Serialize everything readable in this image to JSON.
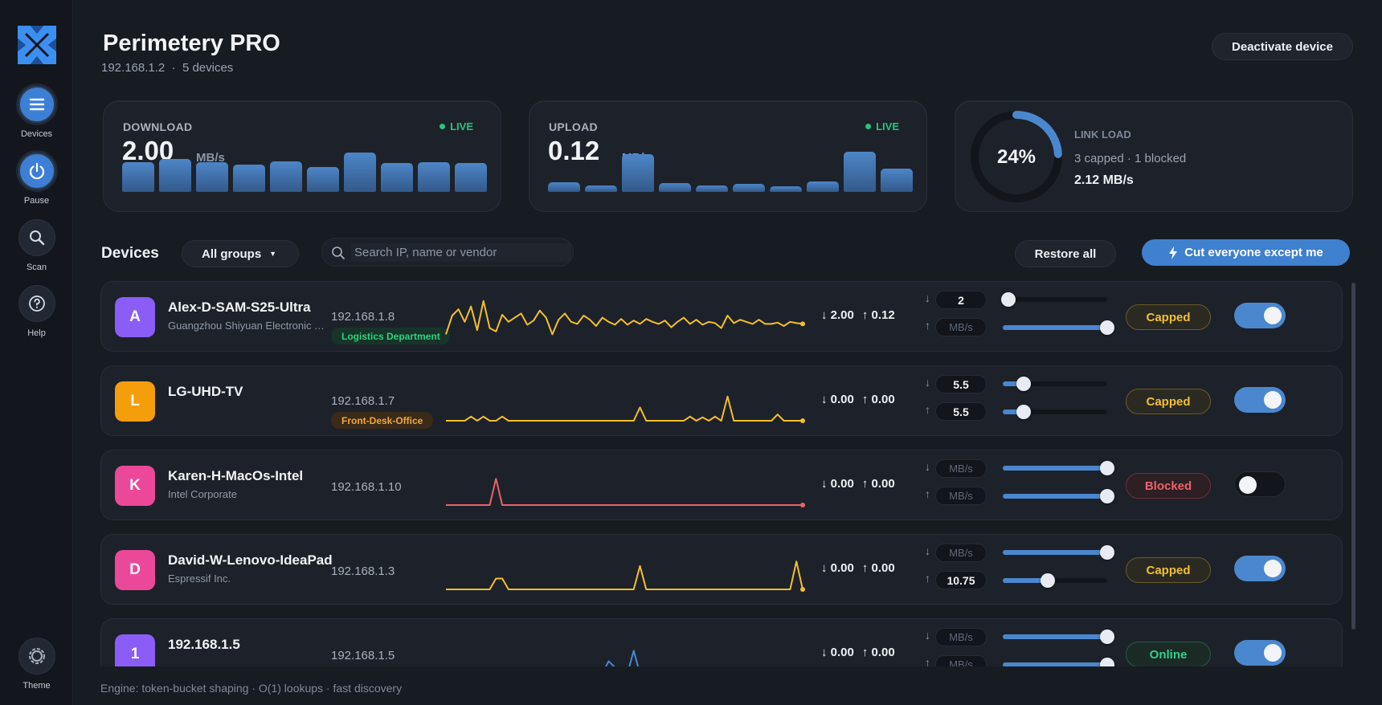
{
  "app": {
    "title": "Perimetery PRO",
    "host_ip": "192.168.1.2",
    "device_count": "5 devices",
    "deactivate_label": "Deactivate device"
  },
  "sidebar": {
    "items": [
      {
        "label": "Devices",
        "icon": "menu-icon",
        "active": true
      },
      {
        "label": "Pause",
        "icon": "power-icon",
        "active": true
      },
      {
        "label": "Scan",
        "icon": "search-icon",
        "active": false
      },
      {
        "label": "Help",
        "icon": "help-icon",
        "active": false
      }
    ],
    "theme_label": "Theme"
  },
  "stats": {
    "download": {
      "label": "DOWNLOAD",
      "value": "2.00",
      "unit": "MB/s",
      "live": "LIVE",
      "history": [
        0.62,
        0.68,
        0.62,
        0.56,
        0.64,
        0.52,
        0.82,
        0.6,
        0.62,
        0.6
      ]
    },
    "upload": {
      "label": "UPLOAD",
      "value": "0.12",
      "unit": "MB/s",
      "live": "LIVE",
      "history": [
        0.2,
        0.14,
        0.78,
        0.18,
        0.14,
        0.16,
        0.12,
        0.22,
        0.84,
        0.48
      ]
    },
    "link_load": {
      "label": "LINK LOAD",
      "percent": "24%",
      "fraction": 0.24,
      "summary": "3 capped · 1 blocked",
      "rate": "2.12 MB/s"
    }
  },
  "toolbar": {
    "title": "Devices",
    "group_filter": "All groups",
    "search_placeholder": "Search IP, name or vendor",
    "restore_label": "Restore all",
    "cut_label": "Cut everyone except me"
  },
  "devices": [
    {
      "initial": "A",
      "color": "#8b5cf6",
      "name": "Alex-D-SAM-S25-Ultra",
      "vendor": "Guangzhou Shiyuan Electronic Technology",
      "ip": "192.168.1.8",
      "tag": "Logistics Department",
      "tag_fg": "#31d07f",
      "tag_bg": "#173428",
      "down": "↓ 2.00",
      "up": "↑ 0.12",
      "down_limit": "2",
      "up_limit": "MB/s",
      "down_level": 0.05,
      "up_level": 1.0,
      "status": "Capped",
      "status_kind": "capped",
      "enabled": true,
      "spark_color": "#f4be2e",
      "spark": [
        0.05,
        0.5,
        0.65,
        0.35,
        0.72,
        0.15,
        0.85,
        0.2,
        0.12,
        0.52,
        0.35,
        0.45,
        0.55,
        0.28,
        0.38,
        0.62,
        0.45,
        0.05,
        0.4,
        0.55,
        0.35,
        0.3,
        0.5,
        0.4,
        0.25,
        0.45,
        0.35,
        0.28,
        0.42,
        0.28,
        0.38,
        0.3,
        0.42,
        0.35,
        0.3,
        0.38,
        0.22,
        0.35,
        0.45,
        0.3,
        0.4,
        0.28,
        0.35,
        0.32,
        0.2,
        0.5,
        0.32,
        0.4,
        0.35,
        0.3,
        0.4,
        0.3,
        0.3,
        0.33,
        0.25,
        0.35,
        0.32,
        0.3
      ]
    },
    {
      "initial": "L",
      "color": "#f59e0b",
      "name": "LG-UHD-TV",
      "vendor": "",
      "ip": "192.168.1.7",
      "tag": "Front-Desk-Office",
      "tag_fg": "#f1a83a",
      "tag_bg": "#3a2a18",
      "down": "↓ 0.00",
      "up": "↑ 0.00",
      "down_limit": "5.5",
      "up_limit": "5.5",
      "down_level": 0.2,
      "up_level": 0.2,
      "status": "Capped",
      "status_kind": "capped",
      "enabled": true,
      "spark_color": "#f4be2e",
      "spark": [
        0,
        0,
        0,
        0,
        0.1,
        0,
        0.1,
        0,
        0,
        0.1,
        0,
        0,
        0,
        0,
        0,
        0,
        0,
        0,
        0,
        0,
        0,
        0,
        0,
        0,
        0,
        0,
        0,
        0,
        0,
        0,
        0,
        0.32,
        0,
        0,
        0,
        0,
        0,
        0,
        0,
        0.1,
        0,
        0.08,
        0,
        0.1,
        0,
        0.58,
        0,
        0,
        0,
        0,
        0,
        0,
        0,
        0.15,
        0,
        0,
        0,
        0
      ]
    },
    {
      "initial": "K",
      "color": "#ec4899",
      "name": "Karen-H-MacOs-Intel",
      "vendor": "Intel Corporate",
      "ip": "192.168.1.10",
      "tag": "",
      "tag_fg": "",
      "tag_bg": "",
      "down": "↓ 0.00",
      "up": "↑ 0.00",
      "down_limit": "MB/s",
      "up_limit": "MB/s",
      "down_level": 1.0,
      "up_level": 1.0,
      "status": "Blocked",
      "status_kind": "blocked",
      "enabled": false,
      "spark_color": "#e9636b",
      "spark": [
        0,
        0,
        0,
        0,
        0,
        0,
        0,
        0,
        0.63,
        0,
        0,
        0,
        0,
        0,
        0,
        0,
        0,
        0,
        0,
        0,
        0,
        0,
        0,
        0,
        0,
        0,
        0,
        0,
        0,
        0,
        0,
        0,
        0,
        0,
        0,
        0,
        0,
        0,
        0,
        0,
        0,
        0,
        0,
        0,
        0,
        0,
        0,
        0,
        0,
        0,
        0,
        0,
        0,
        0,
        0,
        0,
        0,
        0
      ]
    },
    {
      "initial": "D",
      "color": "#ec4899",
      "name": "David-W-Lenovo-IdeaPad",
      "vendor": "Espressif Inc.",
      "ip": "192.168.1.3",
      "tag": "",
      "tag_fg": "",
      "tag_bg": "",
      "down": "↓ 0.00",
      "up": "↑ 0.00",
      "down_limit": "MB/s",
      "up_limit": "10.75",
      "down_level": 1.0,
      "up_level": 0.43,
      "status": "Capped",
      "status_kind": "capped",
      "enabled": true,
      "spark_color": "#f4be2e",
      "spark": [
        0,
        0,
        0,
        0,
        0,
        0,
        0,
        0,
        0.26,
        0.26,
        0,
        0,
        0,
        0,
        0,
        0,
        0,
        0,
        0,
        0,
        0,
        0,
        0,
        0,
        0,
        0,
        0,
        0,
        0,
        0,
        0,
        0.56,
        0,
        0,
        0,
        0,
        0,
        0,
        0,
        0,
        0,
        0,
        0,
        0,
        0,
        0,
        0,
        0,
        0,
        0,
        0,
        0,
        0,
        0,
        0,
        0,
        0.67,
        0
      ]
    },
    {
      "initial": "1",
      "color": "#8b5cf6",
      "name": "192.168.1.5",
      "vendor": "",
      "ip": "192.168.1.5",
      "tag": "",
      "tag_fg": "",
      "tag_bg": "",
      "down": "↓ 0.00",
      "up": "↑ 0.00",
      "down_limit": "MB/s",
      "up_limit": "MB/s",
      "down_level": 1.0,
      "up_level": 1.0,
      "status": "Online",
      "status_kind": "online",
      "enabled": true,
      "spark_color": "#4b87cf",
      "spark": [
        0,
        0,
        0,
        0,
        0,
        0,
        0,
        0,
        0,
        0,
        0,
        0,
        0,
        0,
        0,
        0,
        0,
        0,
        0,
        0,
        0,
        0,
        0,
        0,
        0,
        0,
        0.3,
        0.15,
        0,
        0,
        0.55,
        0,
        0,
        0,
        0,
        0,
        0,
        0,
        0,
        0,
        0,
        0,
        0,
        0,
        0,
        0,
        0,
        0,
        0,
        0,
        0,
        0,
        0,
        0,
        0,
        0,
        0,
        0
      ]
    }
  ],
  "footer": "Engine: token-bucket shaping · O(1) lookups · fast discovery"
}
